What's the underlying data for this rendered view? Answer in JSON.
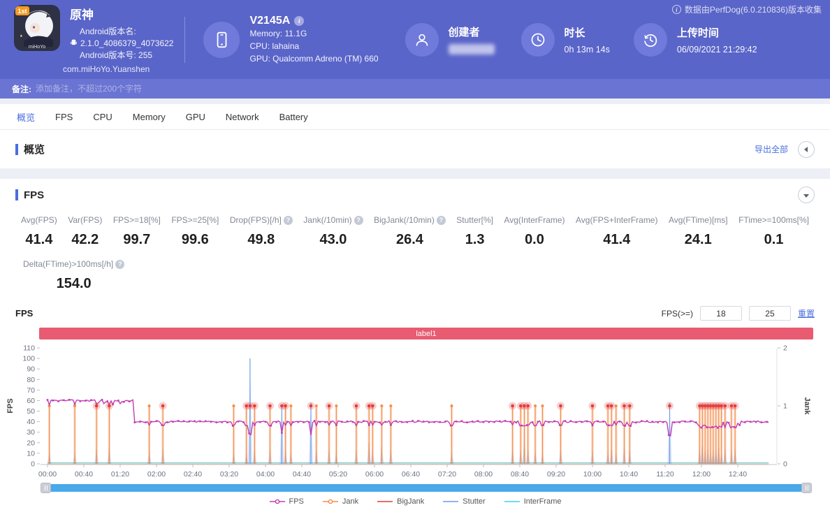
{
  "active_tab": 0,
  "glyphs": {
    "info": "i",
    "help": "?"
  },
  "header": {
    "collect_notice": "数据由PerfDog(6.0.210836)版本收集",
    "app": {
      "title": "原神",
      "badge": "1st",
      "brand": "miHoYo",
      "version_label": "Android版本名:",
      "version": "2.1.0_4086379_4073622",
      "build": "Android版本号: 255",
      "package": "com.miHoYo.Yuanshen"
    },
    "device": {
      "model": "V2145A",
      "memory": "Memory: 11.1G",
      "cpu": "CPU: lahaina",
      "gpu": "GPU: Qualcomm Adreno (TM) 660"
    },
    "creator": {
      "label": "创建者"
    },
    "duration": {
      "label": "时长",
      "value": "0h 13m 14s"
    },
    "upload": {
      "label": "上传时间",
      "value": "06/09/2021 21:29:42"
    }
  },
  "remark": {
    "label": "备注:",
    "placeholder": "添加备注，不超过200个字符"
  },
  "tabs": [
    "概览",
    "FPS",
    "CPU",
    "Memory",
    "GPU",
    "Network",
    "Battery"
  ],
  "overview": {
    "title": "概览",
    "export_label": "导出全部"
  },
  "fps_section": {
    "title": "FPS",
    "chart_title": "FPS",
    "threshold_label": "FPS(>=)",
    "threshold_values": [
      "18",
      "25"
    ],
    "reset_label": "重置",
    "banner_label": "label1",
    "metrics": [
      {
        "label": "Avg(FPS)",
        "value": "41.4",
        "help": false
      },
      {
        "label": "Var(FPS)",
        "value": "42.2",
        "help": false
      },
      {
        "label": "FPS>=18[%]",
        "value": "99.7",
        "help": false
      },
      {
        "label": "FPS>=25[%]",
        "value": "99.6",
        "help": false
      },
      {
        "label": "Drop(FPS)[/h]",
        "value": "49.8",
        "help": true
      },
      {
        "label": "Jank(/10min)",
        "value": "43.0",
        "help": true
      },
      {
        "label": "BigJank(/10min)",
        "value": "26.4",
        "help": true
      },
      {
        "label": "Stutter[%]",
        "value": "1.3",
        "help": false
      },
      {
        "label": "Avg(InterFrame)",
        "value": "0.0",
        "help": false
      },
      {
        "label": "Avg(FPS+InterFrame)",
        "value": "41.4",
        "help": false
      },
      {
        "label": "Avg(FTime)[ms]",
        "value": "24.1",
        "help": false
      },
      {
        "label": "FTime>=100ms[%]",
        "value": "0.1",
        "help": false
      }
    ],
    "metrics_row2": [
      {
        "label": "Delta(FTime)>100ms[/h]",
        "value": "154.0",
        "help": true
      }
    ]
  },
  "chart_data": {
    "type": "line",
    "title": "FPS",
    "ylabel_left": "FPS",
    "ylabel_right": "Jank",
    "ylim_left": [
      0,
      110
    ],
    "ylim_right": [
      0,
      2
    ],
    "y_ticks_left": [
      0,
      10,
      20,
      30,
      40,
      50,
      60,
      70,
      80,
      90,
      100,
      110
    ],
    "y_ticks_right": [
      0,
      1,
      2
    ],
    "x_ticks": [
      "00:00",
      "00:40",
      "01:20",
      "02:00",
      "02:40",
      "03:20",
      "04:00",
      "04:40",
      "05:20",
      "06:00",
      "06:40",
      "07:20",
      "08:00",
      "08:40",
      "09:20",
      "10:00",
      "10:40",
      "11:20",
      "12:00",
      "12:40"
    ],
    "x_tick_interval_s": 40,
    "duration_s": 794,
    "grid": false,
    "legend_position": "bottom",
    "legend": [
      "FPS",
      "Jank",
      "BigJank",
      "Stutter",
      "InterFrame"
    ],
    "legend_markers": [
      "dot",
      "dot",
      "line",
      "line",
      "line"
    ],
    "colors": {
      "fps": "#c13cb4",
      "jank": "#f58c4b",
      "bigjank": "#e23c3c",
      "stutter": "#6e9ce8",
      "interframe": "#39d3e8"
    },
    "fps_baseline": [
      {
        "from_s": 0,
        "to_s": 95,
        "fps": 60
      },
      {
        "from_s": 95,
        "to_s": 794,
        "fps": 40
      }
    ],
    "jank_spike_level": 1,
    "interframe_value": 0,
    "events_format": [
      "t_seconds",
      "jank",
      "bigjank",
      "stutter_height_fps_units"
    ],
    "events": [
      [
        2,
        1,
        0,
        10
      ],
      [
        30,
        1,
        0,
        10
      ],
      [
        54,
        1,
        1,
        13
      ],
      [
        68,
        1,
        1,
        15
      ],
      [
        112,
        1,
        0,
        11
      ],
      [
        127,
        1,
        1,
        14
      ],
      [
        205,
        1,
        0,
        10
      ],
      [
        219,
        1,
        1,
        9
      ],
      [
        223,
        0,
        1,
        100
      ],
      [
        228,
        1,
        1,
        12
      ],
      [
        245,
        1,
        1,
        14
      ],
      [
        258,
        0,
        1,
        55
      ],
      [
        262,
        1,
        1,
        12
      ],
      [
        268,
        1,
        0,
        10
      ],
      [
        290,
        0,
        1,
        58
      ],
      [
        296,
        1,
        0,
        12
      ],
      [
        310,
        1,
        1,
        14
      ],
      [
        318,
        1,
        0,
        10
      ],
      [
        340,
        1,
        1,
        13
      ],
      [
        354,
        1,
        1,
        20
      ],
      [
        358,
        1,
        1,
        12
      ],
      [
        368,
        1,
        0,
        16
      ],
      [
        378,
        1,
        0,
        13
      ],
      [
        445,
        1,
        0,
        11
      ],
      [
        512,
        1,
        1,
        13
      ],
      [
        521,
        1,
        1,
        12
      ],
      [
        525,
        1,
        1,
        20
      ],
      [
        529,
        1,
        1,
        13
      ],
      [
        537,
        1,
        0,
        11
      ],
      [
        545,
        1,
        0,
        9
      ],
      [
        565,
        1,
        1,
        13
      ],
      [
        600,
        1,
        1,
        12
      ],
      [
        617,
        1,
        1,
        11
      ],
      [
        621,
        1,
        1,
        13
      ],
      [
        626,
        1,
        0,
        9
      ],
      [
        635,
        1,
        1,
        15
      ],
      [
        641,
        1,
        1,
        12
      ],
      [
        685,
        0,
        1,
        58
      ],
      [
        718,
        1,
        1,
        13
      ],
      [
        721,
        1,
        1,
        16
      ],
      [
        724,
        1,
        1,
        12
      ],
      [
        727,
        1,
        1,
        14
      ],
      [
        730,
        1,
        1,
        11
      ],
      [
        733,
        1,
        1,
        13
      ],
      [
        736,
        1,
        1,
        12
      ],
      [
        739,
        1,
        1,
        15
      ],
      [
        742,
        1,
        1,
        10
      ],
      [
        746,
        1,
        1,
        13
      ],
      [
        753,
        1,
        1,
        12
      ],
      [
        757,
        1,
        1,
        14
      ]
    ]
  }
}
